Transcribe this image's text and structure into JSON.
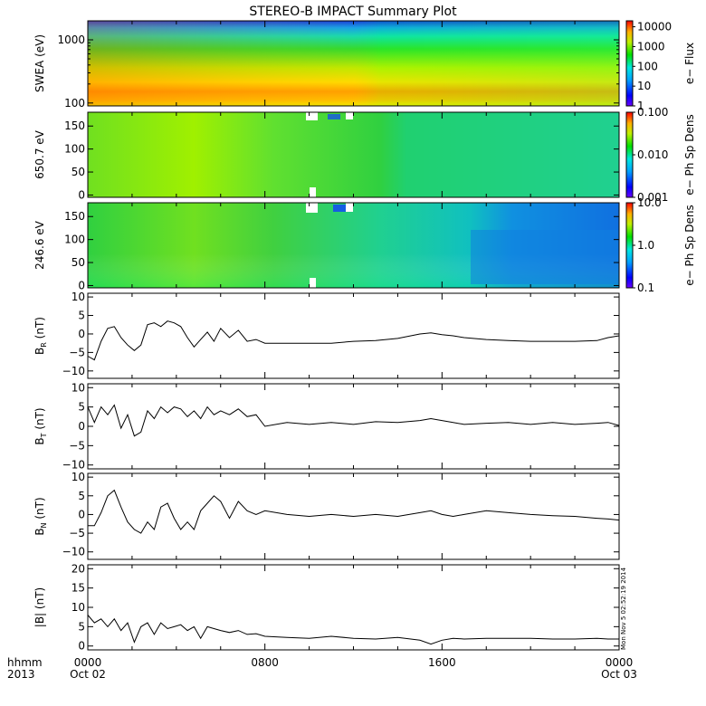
{
  "title": "STEREO-B IMPACT Summary Plot",
  "timestamp": "Mon Nov  5 02:52:19 2014",
  "chart_data": [
    {
      "type": "heatmap",
      "id": "swea",
      "ylabel": "SWEA (eV)",
      "yscale": "log",
      "ylim": [
        90,
        2000
      ],
      "yticks": [
        {
          "v": 100,
          "label": "100"
        },
        {
          "v": 1000,
          "label": "1000"
        }
      ],
      "colorbar": {
        "label": "e− Flux",
        "scale": "log",
        "range": [
          1,
          20000
        ],
        "ticks": [
          {
            "v": 1,
            "label": "1"
          },
          {
            "v": 10,
            "label": "10"
          },
          {
            "v": 100,
            "label": "100"
          },
          {
            "v": 1000,
            "label": "1000"
          },
          {
            "v": 10000,
            "label": "10000"
          }
        ]
      }
    },
    {
      "type": "heatmap",
      "id": "pad650",
      "ylabel": "650.7 eV",
      "ylim": [
        -5,
        180
      ],
      "yticks": [
        {
          "v": 0,
          "label": "0"
        },
        {
          "v": 50,
          "label": "50"
        },
        {
          "v": 100,
          "label": "100"
        },
        {
          "v": 150,
          "label": "150"
        }
      ],
      "colorbar": {
        "label": "e− Ph Sp Dens",
        "scale": "log",
        "range": [
          0.001,
          0.1
        ],
        "ticks": [
          {
            "v": 0.001,
            "label": "0.001"
          },
          {
            "v": 0.01,
            "label": "0.010"
          },
          {
            "v": 0.1,
            "label": "0.100"
          }
        ]
      }
    },
    {
      "type": "heatmap",
      "id": "pad246",
      "ylabel": "246.6 eV",
      "ylim": [
        -5,
        180
      ],
      "yticks": [
        {
          "v": 0,
          "label": "0"
        },
        {
          "v": 50,
          "label": "50"
        },
        {
          "v": 100,
          "label": "100"
        },
        {
          "v": 150,
          "label": "150"
        }
      ],
      "colorbar": {
        "label": "e− Ph Sp Dens",
        "scale": "log",
        "range": [
          0.1,
          10
        ],
        "ticks": [
          {
            "v": 0.1,
            "label": "0.1"
          },
          {
            "v": 1,
            "label": "1.0"
          },
          {
            "v": 10,
            "label": "10.0"
          }
        ]
      }
    },
    {
      "type": "line",
      "id": "br",
      "ylabel": "B",
      "ylabel_sub": "R",
      "ylabel_unit": "(nT)",
      "ylim": [
        -12,
        11
      ],
      "yticks": [
        {
          "v": -10,
          "label": "−10"
        },
        {
          "v": -5,
          "label": "−5"
        },
        {
          "v": 0,
          "label": "0"
        },
        {
          "v": 5,
          "label": "5"
        },
        {
          "v": 10,
          "label": "10"
        }
      ],
      "x": [
        0,
        0.3,
        0.6,
        0.9,
        1.2,
        1.5,
        1.8,
        2.1,
        2.4,
        2.7,
        3.0,
        3.3,
        3.6,
        3.9,
        4.2,
        4.5,
        4.8,
        5.1,
        5.4,
        5.7,
        6.0,
        6.4,
        6.8,
        7.2,
        7.6,
        8.0,
        9,
        10,
        11,
        12,
        13,
        14,
        15,
        15.5,
        16,
        16.5,
        17,
        18,
        19,
        20,
        21,
        22,
        23,
        23.5,
        24
      ],
      "y": [
        -6,
        -7,
        -2,
        1.5,
        2,
        -1,
        -3,
        -4.5,
        -3,
        2.5,
        3,
        2,
        3.5,
        3,
        2,
        -1,
        -3.5,
        -1.5,
        0.5,
        -2,
        1.5,
        -1,
        1,
        -2,
        -1.5,
        -2.5,
        -2.5,
        -2.5,
        -2.5,
        -2,
        -1.8,
        -1.2,
        0,
        0.3,
        -0.2,
        -0.5,
        -1,
        -1.5,
        -1.8,
        -2,
        -2,
        -2,
        -1.8,
        -1,
        -0.5
      ]
    },
    {
      "type": "line",
      "id": "bt",
      "ylabel": "B",
      "ylabel_sub": "T",
      "ylabel_unit": "(nT)",
      "ylim": [
        -11,
        11
      ],
      "yticks": [
        {
          "v": -10,
          "label": "−10"
        },
        {
          "v": -5,
          "label": "−5"
        },
        {
          "v": 0,
          "label": "0"
        },
        {
          "v": 5,
          "label": "5"
        },
        {
          "v": 10,
          "label": "10"
        }
      ],
      "x": [
        0,
        0.3,
        0.6,
        0.9,
        1.2,
        1.5,
        1.8,
        2.1,
        2.4,
        2.7,
        3.0,
        3.3,
        3.6,
        3.9,
        4.2,
        4.5,
        4.8,
        5.1,
        5.4,
        5.7,
        6.0,
        6.4,
        6.8,
        7.2,
        7.6,
        8.0,
        9,
        10,
        11,
        12,
        13,
        14,
        15,
        15.5,
        16,
        16.5,
        17,
        18,
        19,
        20,
        21,
        22,
        23,
        23.5,
        24
      ],
      "y": [
        5,
        1,
        5,
        3,
        5.5,
        -0.5,
        3,
        -2.5,
        -1.5,
        4,
        2,
        5,
        3.5,
        5,
        4.5,
        2.5,
        4,
        2,
        5,
        3,
        4,
        3,
        4.5,
        2.5,
        3,
        0,
        1,
        0.5,
        1,
        0.5,
        1.2,
        1,
        1.5,
        2,
        1.5,
        1,
        0.5,
        0.8,
        1,
        0.5,
        1,
        0.5,
        0.8,
        1,
        0.2
      ]
    },
    {
      "type": "line",
      "id": "bn",
      "ylabel": "B",
      "ylabel_sub": "N",
      "ylabel_unit": "(nT)",
      "ylim": [
        -12,
        11
      ],
      "yticks": [
        {
          "v": -10,
          "label": "−10"
        },
        {
          "v": -5,
          "label": "−5"
        },
        {
          "v": 0,
          "label": "0"
        },
        {
          "v": 5,
          "label": "5"
        },
        {
          "v": 10,
          "label": "10"
        }
      ],
      "x": [
        0,
        0.3,
        0.6,
        0.9,
        1.2,
        1.5,
        1.8,
        2.1,
        2.4,
        2.7,
        3.0,
        3.3,
        3.6,
        3.9,
        4.2,
        4.5,
        4.8,
        5.1,
        5.4,
        5.7,
        6.0,
        6.4,
        6.8,
        7.2,
        7.6,
        8.0,
        9,
        10,
        11,
        12,
        13,
        14,
        15,
        15.5,
        16,
        16.5,
        17,
        18,
        19,
        20,
        21,
        22,
        23,
        23.5,
        24
      ],
      "y": [
        -3,
        -3,
        0.5,
        5,
        6.5,
        2,
        -2,
        -4,
        -5,
        -2,
        -4,
        2,
        3,
        -1,
        -4,
        -2,
        -4,
        1,
        3,
        5,
        3.5,
        -1,
        3.5,
        1,
        0,
        1,
        0,
        -0.5,
        0,
        -0.5,
        0,
        -0.5,
        0.5,
        1,
        0,
        -0.5,
        0,
        1,
        0.5,
        0,
        -0.3,
        -0.5,
        -1,
        -1.2,
        -1.5
      ]
    },
    {
      "type": "line",
      "id": "bmag",
      "ylabel": "|B| (nT)",
      "ylim": [
        -1,
        21
      ],
      "yticks": [
        {
          "v": 0,
          "label": "0"
        },
        {
          "v": 5,
          "label": "5"
        },
        {
          "v": 10,
          "label": "10"
        },
        {
          "v": 15,
          "label": "15"
        },
        {
          "v": 20,
          "label": "20"
        }
      ],
      "x": [
        0,
        0.3,
        0.6,
        0.9,
        1.2,
        1.5,
        1.8,
        2.1,
        2.4,
        2.7,
        3.0,
        3.3,
        3.6,
        3.9,
        4.2,
        4.5,
        4.8,
        5.1,
        5.4,
        5.7,
        6.0,
        6.4,
        6.8,
        7.2,
        7.6,
        8.0,
        9,
        10,
        11,
        12,
        13,
        14,
        15,
        15.5,
        16,
        16.5,
        17,
        18,
        19,
        20,
        21,
        22,
        23,
        23.5,
        24
      ],
      "y": [
        8,
        6,
        7,
        5,
        7,
        4,
        6,
        1,
        5,
        6,
        3,
        6,
        4.5,
        5,
        5.5,
        4,
        5,
        2,
        5,
        4.5,
        4,
        3.5,
        4,
        3,
        3.2,
        2.5,
        2.2,
        2,
        2.5,
        2,
        1.8,
        2.2,
        1.5,
        0.5,
        1.5,
        2,
        1.8,
        2,
        2,
        2,
        1.8,
        1.8,
        2,
        1.8,
        1.8
      ]
    }
  ],
  "xaxis": {
    "ticks": [
      {
        "v": 0,
        "label": "0000"
      },
      {
        "v": 8,
        "label": "0800"
      },
      {
        "v": 16,
        "label": "1600"
      },
      {
        "v": 24,
        "label": "0000"
      }
    ],
    "dates": [
      {
        "v": 0,
        "label": "Oct 02"
      },
      {
        "v": 24,
        "label": "Oct 03"
      }
    ],
    "legend_top": "hhmm",
    "legend_bottom": "2013"
  }
}
